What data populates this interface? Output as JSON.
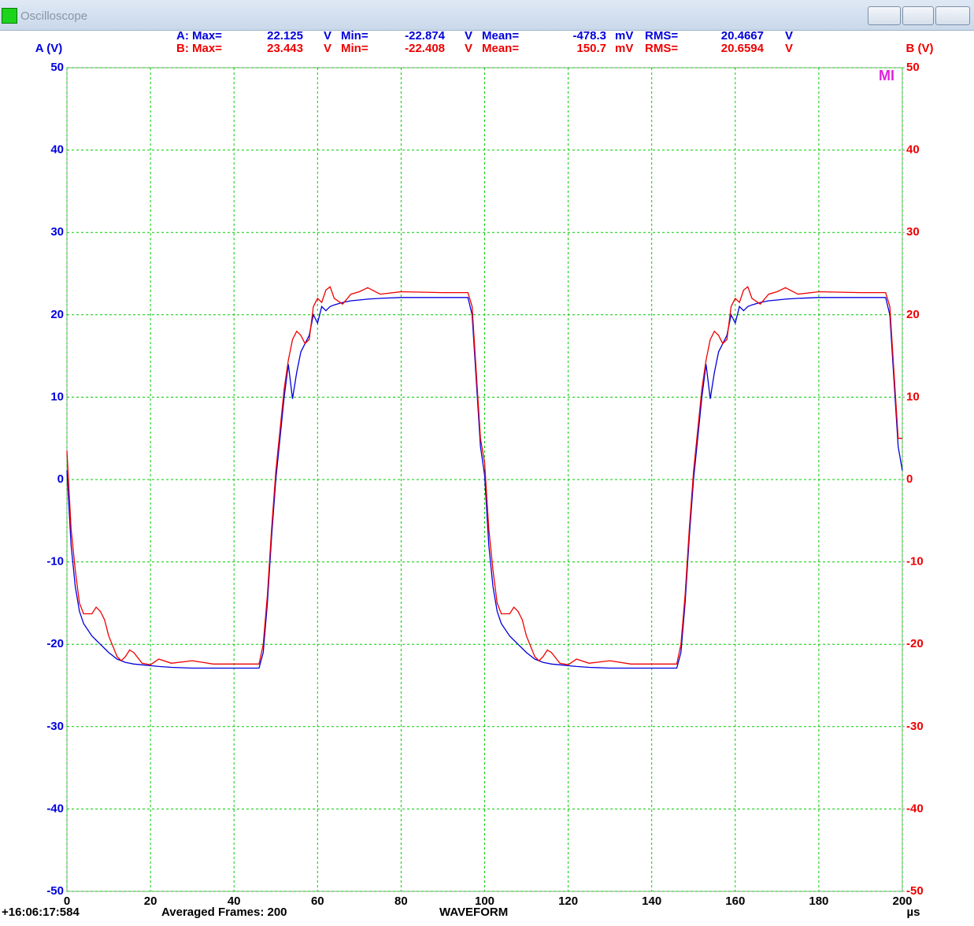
{
  "window": {
    "title": "Oscilloscope"
  },
  "footer": {
    "timestamp": "+16:06:17:584",
    "frames": "Averaged Frames: 200",
    "mode": "WAVEFORM"
  },
  "chart_data": {
    "type": "line",
    "ylabel": "A (V)",
    "y2label": "B (V)",
    "xlabel": "µs",
    "annotation": "MI",
    "xlim": [
      0,
      200
    ],
    "xticks": [
      0,
      20,
      40,
      60,
      80,
      100,
      120,
      140,
      160,
      180,
      200
    ],
    "ylim": [
      -50,
      50
    ],
    "yticks": [
      -50,
      -40,
      -30,
      -20,
      -10,
      0,
      10,
      20,
      30,
      40,
      50
    ],
    "y2lim": [
      -50,
      50
    ],
    "y2ticks": [
      -50,
      -40,
      -30,
      -20,
      -10,
      0,
      10,
      20,
      30,
      40,
      50
    ],
    "grid": true,
    "grid_color": "#00cc00",
    "stats": [
      [
        "A: Max=",
        "22.125",
        "V",
        "Min=",
        "-22.874",
        "V",
        "Mean=",
        "-478.3",
        "mV",
        "RMS=",
        "20.4667",
        "V"
      ],
      [
        "B: Max=",
        "23.443",
        "V",
        "Min=",
        "-22.408",
        "V",
        "Mean=",
        "150.7",
        "mV",
        "RMS=",
        "20.6594",
        "V"
      ]
    ],
    "x": [
      0,
      1,
      2,
      3,
      4,
      6,
      7,
      8,
      9,
      10,
      12,
      13,
      14,
      15,
      16,
      18,
      20,
      22,
      25,
      30,
      35,
      40,
      46,
      47,
      48,
      49,
      50,
      51,
      52,
      53,
      54,
      55,
      56,
      57,
      58,
      59,
      60,
      61,
      62,
      63,
      64,
      66,
      68,
      70,
      72,
      75,
      80,
      90,
      96,
      97,
      98,
      99,
      100,
      101,
      102,
      103,
      104,
      106,
      107,
      108,
      109,
      110,
      112,
      113,
      114,
      115,
      116,
      118,
      120,
      122,
      125,
      130,
      135,
      140,
      146,
      147,
      148,
      149,
      150,
      151,
      152,
      153,
      154,
      155,
      156,
      157,
      158,
      159,
      160,
      161,
      162,
      163,
      164,
      166,
      168,
      170,
      172,
      175,
      180,
      190,
      196,
      197,
      198,
      199,
      200
    ],
    "series": [
      {
        "name": "A",
        "color": "#0000dd",
        "values": [
          1.1,
          -8,
          -13,
          -16,
          -17.5,
          -19,
          -19.5,
          -20,
          -20.5,
          -21,
          -21.8,
          -22,
          -22.2,
          -22.3,
          -22.4,
          -22.5,
          -22.6,
          -22.7,
          -22.8,
          -22.9,
          -22.9,
          -22.9,
          -22.9,
          -21,
          -15,
          -7,
          0,
          5,
          10,
          14,
          9.8,
          13,
          15.5,
          16.5,
          17.5,
          20,
          19,
          21,
          20.5,
          21,
          21.2,
          21.5,
          21.7,
          21.8,
          21.9,
          22,
          22.1,
          22.1,
          22.1,
          20,
          12,
          4,
          0.5,
          -8,
          -13,
          -16,
          -17.5,
          -19,
          -19.5,
          -20,
          -20.5,
          -21,
          -21.8,
          -22,
          -22.2,
          -22.3,
          -22.4,
          -22.5,
          -22.6,
          -22.7,
          -22.8,
          -22.9,
          -22.9,
          -22.9,
          -22.9,
          -21,
          -15,
          -7,
          0,
          5,
          10,
          14,
          9.8,
          13,
          15.5,
          16.5,
          17.5,
          20,
          19,
          21,
          20.5,
          21,
          21.2,
          21.5,
          21.7,
          21.8,
          21.9,
          22,
          22.1,
          22.1,
          22.1,
          20,
          12,
          4,
          1.1
        ]
      },
      {
        "name": "B",
        "color": "#ee0000",
        "axis": "y2",
        "values": [
          3.5,
          -6,
          -11,
          -15,
          -16.3,
          -16.3,
          -15.5,
          -16,
          -17,
          -19,
          -21.5,
          -22,
          -21.5,
          -20.7,
          -21,
          -22.3,
          -22.5,
          -21.8,
          -22.3,
          -22,
          -22.4,
          -22.4,
          -22.4,
          -20,
          -14,
          -6,
          1,
          6,
          11,
          14.5,
          17,
          18,
          17.5,
          16.5,
          17,
          21,
          22,
          21.5,
          23,
          23.4,
          22,
          21.3,
          22.5,
          22.8,
          23.3,
          22.5,
          22.8,
          22.7,
          22.7,
          21,
          13,
          5,
          2,
          -6,
          -11,
          -15,
          -16.3,
          -16.3,
          -15.5,
          -16,
          -17,
          -19,
          -21.5,
          -22,
          -21.5,
          -20.7,
          -21,
          -22.3,
          -22.5,
          -21.8,
          -22.3,
          -22,
          -22.4,
          -22.4,
          -22.4,
          -20,
          -14,
          -6,
          1,
          6,
          11,
          14.5,
          17,
          18,
          17.5,
          16.5,
          17,
          21,
          22,
          21.5,
          23,
          23.4,
          22,
          21.3,
          22.5,
          22.8,
          23.3,
          22.5,
          22.8,
          22.7,
          22.7,
          21,
          13,
          5,
          5
        ]
      }
    ]
  }
}
